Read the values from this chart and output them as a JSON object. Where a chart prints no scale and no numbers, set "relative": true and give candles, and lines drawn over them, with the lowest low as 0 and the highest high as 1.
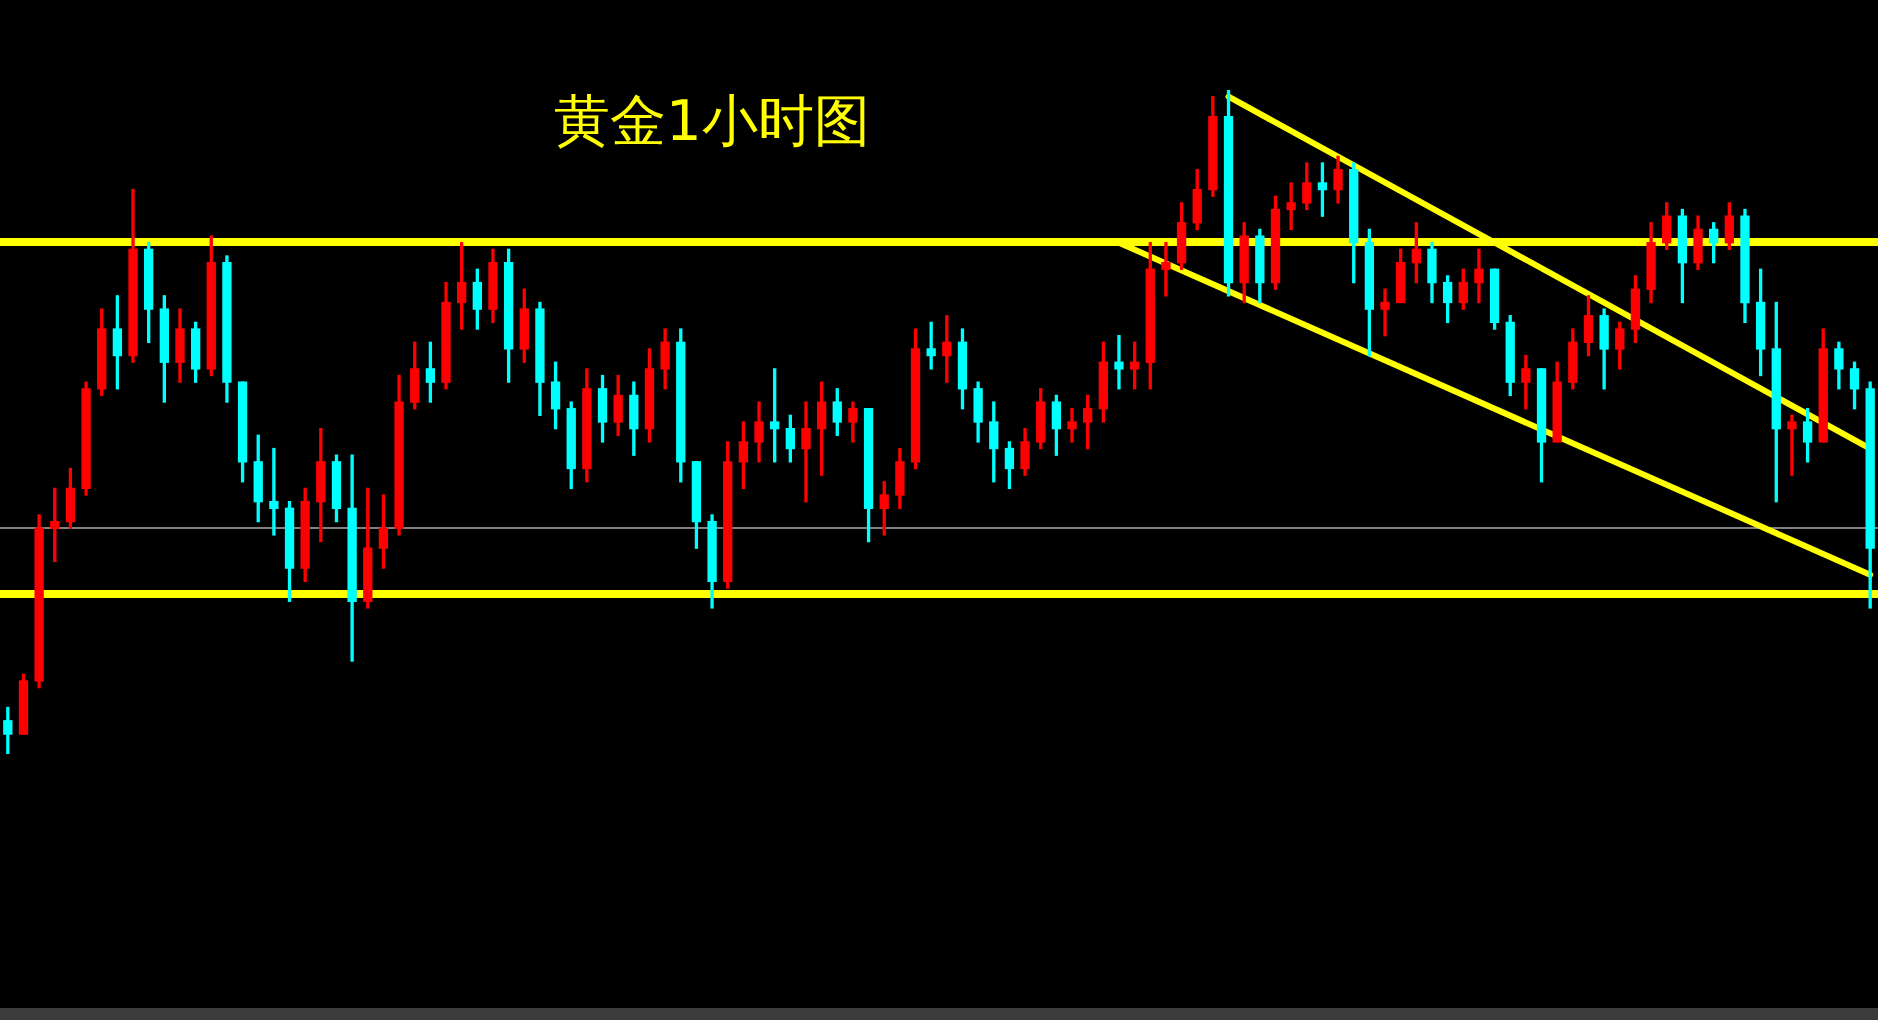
{
  "chart_data": {
    "type": "candlestick",
    "title": "黄金1小时图",
    "relative": true,
    "categories": [
      null,
      null,
      null,
      null,
      null,
      null,
      null,
      null,
      null,
      null,
      null,
      null,
      null,
      null,
      null,
      null,
      null,
      null,
      null,
      null,
      null,
      null,
      null,
      null,
      null,
      null,
      null,
      null,
      null,
      null,
      null,
      null,
      null,
      null,
      null,
      null,
      null,
      null,
      null,
      null,
      null,
      null,
      null,
      null,
      null,
      null,
      null,
      null,
      null,
      null,
      null,
      null,
      null,
      null,
      null,
      null,
      null,
      null,
      null,
      null,
      null,
      null,
      null,
      null,
      null,
      null,
      null,
      null,
      null,
      null,
      null,
      null,
      null,
      null,
      null,
      null,
      null,
      null,
      null,
      null,
      null,
      null,
      null,
      null,
      null,
      null,
      null,
      null,
      null,
      null,
      null,
      null,
      null,
      null,
      null,
      null,
      null,
      null,
      null,
      null,
      null,
      null,
      null,
      null,
      null,
      null,
      null,
      null,
      null,
      null,
      null,
      null,
      null,
      null,
      null,
      null,
      null,
      null,
      null,
      null
    ],
    "ohlc": [
      [
        0.05,
        0.07,
        0,
        0.03
      ],
      [
        0.03,
        0.12,
        0.03,
        0.11
      ],
      [
        0.11,
        0.36,
        0.1,
        0.34
      ],
      [
        0.34,
        0.4,
        0.29,
        0.35
      ],
      [
        0.35,
        0.43,
        0.34,
        0.4
      ],
      [
        0.4,
        0.56,
        0.39,
        0.55
      ],
      [
        0.55,
        0.67,
        0.54,
        0.64
      ],
      [
        0.64,
        0.69,
        0.55,
        0.6
      ],
      [
        0.6,
        0.85,
        0.59,
        0.76
      ],
      [
        0.76,
        0.77,
        0.62,
        0.67
      ],
      [
        0.67,
        0.69,
        0.53,
        0.59
      ],
      [
        0.59,
        0.67,
        0.56,
        0.64
      ],
      [
        0.64,
        0.65,
        0.56,
        0.58
      ],
      [
        0.58,
        0.78,
        0.57,
        0.74
      ],
      [
        0.74,
        0.75,
        0.53,
        0.56
      ],
      [
        0.56,
        0.56,
        0.41,
        0.44
      ],
      [
        0.44,
        0.48,
        0.35,
        0.38
      ],
      [
        0.38,
        0.46,
        0.33,
        0.37
      ],
      [
        0.37,
        0.38,
        0.23,
        0.28
      ],
      [
        0.28,
        0.4,
        0.26,
        0.38
      ],
      [
        0.38,
        0.49,
        0.32,
        0.44
      ],
      [
        0.44,
        0.45,
        0.35,
        0.37
      ],
      [
        0.37,
        0.45,
        0.14,
        0.23
      ],
      [
        0.23,
        0.4,
        0.22,
        0.31
      ],
      [
        0.31,
        0.39,
        0.28,
        0.34
      ],
      [
        0.34,
        0.57,
        0.33,
        0.53
      ],
      [
        0.53,
        0.62,
        0.52,
        0.58
      ],
      [
        0.58,
        0.62,
        0.53,
        0.56
      ],
      [
        0.56,
        0.71,
        0.55,
        0.68
      ],
      [
        0.68,
        0.77,
        0.64,
        0.71
      ],
      [
        0.71,
        0.73,
        0.64,
        0.67
      ],
      [
        0.67,
        0.76,
        0.65,
        0.74
      ],
      [
        0.74,
        0.76,
        0.56,
        0.61
      ],
      [
        0.61,
        0.7,
        0.59,
        0.67
      ],
      [
        0.67,
        0.68,
        0.51,
        0.56
      ],
      [
        0.56,
        0.59,
        0.49,
        0.52
      ],
      [
        0.52,
        0.53,
        0.4,
        0.43
      ],
      [
        0.43,
        0.58,
        0.41,
        0.55
      ],
      [
        0.55,
        0.57,
        0.47,
        0.5
      ],
      [
        0.5,
        0.57,
        0.48,
        0.54
      ],
      [
        0.54,
        0.56,
        0.45,
        0.49
      ],
      [
        0.49,
        0.61,
        0.47,
        0.58
      ],
      [
        0.58,
        0.64,
        0.55,
        0.62
      ],
      [
        0.62,
        0.64,
        0.41,
        0.44
      ],
      [
        0.44,
        0.44,
        0.31,
        0.35
      ],
      [
        0.35,
        0.36,
        0.22,
        0.26
      ],
      [
        0.26,
        0.47,
        0.25,
        0.44
      ],
      [
        0.44,
        0.5,
        0.4,
        0.47
      ],
      [
        0.47,
        0.53,
        0.44,
        0.5
      ],
      [
        0.5,
        0.58,
        0.44,
        0.49
      ],
      [
        0.49,
        0.51,
        0.44,
        0.46
      ],
      [
        0.46,
        0.53,
        0.38,
        0.49
      ],
      [
        0.49,
        0.56,
        0.42,
        0.53
      ],
      [
        0.53,
        0.55,
        0.48,
        0.5
      ],
      [
        0.5,
        0.53,
        0.47,
        0.52
      ],
      [
        0.52,
        0.52,
        0.32,
        0.37
      ],
      [
        0.37,
        0.41,
        0.33,
        0.39
      ],
      [
        0.39,
        0.46,
        0.37,
        0.44
      ],
      [
        0.44,
        0.64,
        0.43,
        0.61
      ],
      [
        0.61,
        0.65,
        0.58,
        0.6
      ],
      [
        0.6,
        0.66,
        0.56,
        0.62
      ],
      [
        0.62,
        0.64,
        0.52,
        0.55
      ],
      [
        0.55,
        0.56,
        0.47,
        0.5
      ],
      [
        0.5,
        0.53,
        0.41,
        0.46
      ],
      [
        0.46,
        0.47,
        0.4,
        0.43
      ],
      [
        0.43,
        0.49,
        0.42,
        0.47
      ],
      [
        0.47,
        0.55,
        0.46,
        0.53
      ],
      [
        0.53,
        0.54,
        0.45,
        0.49
      ],
      [
        0.49,
        0.52,
        0.47,
        0.5
      ],
      [
        0.5,
        0.54,
        0.46,
        0.52
      ],
      [
        0.52,
        0.62,
        0.5,
        0.59
      ],
      [
        0.59,
        0.63,
        0.55,
        0.58
      ],
      [
        0.58,
        0.62,
        0.55,
        0.59
      ],
      [
        0.59,
        0.77,
        0.55,
        0.73
      ],
      [
        0.73,
        0.77,
        0.69,
        0.74
      ],
      [
        0.74,
        0.83,
        0.73,
        0.8
      ],
      [
        0.8,
        0.88,
        0.79,
        0.85
      ],
      [
        0.85,
        0.99,
        0.84,
        0.96
      ],
      [
        0.96,
        1,
        0.69,
        0.71
      ],
      [
        0.71,
        0.8,
        0.68,
        0.78
      ],
      [
        0.78,
        0.79,
        0.68,
        0.71
      ],
      [
        0.71,
        0.84,
        0.7,
        0.82
      ],
      [
        0.82,
        0.86,
        0.79,
        0.83
      ],
      [
        0.83,
        0.89,
        0.82,
        0.86
      ],
      [
        0.86,
        0.89,
        0.81,
        0.85
      ],
      [
        0.85,
        0.9,
        0.83,
        0.88
      ],
      [
        0.88,
        0.89,
        0.71,
        0.77
      ],
      [
        0.77,
        0.79,
        0.6,
        0.67
      ],
      [
        0.67,
        0.7,
        0.63,
        0.68
      ],
      [
        0.68,
        0.76,
        0.68,
        0.74
      ],
      [
        0.74,
        0.8,
        0.71,
        0.76
      ],
      [
        0.76,
        0.77,
        0.68,
        0.71
      ],
      [
        0.71,
        0.72,
        0.65,
        0.68
      ],
      [
        0.68,
        0.73,
        0.67,
        0.71
      ],
      [
        0.71,
        0.76,
        0.68,
        0.73
      ],
      [
        0.73,
        0.73,
        0.64,
        0.65
      ],
      [
        0.65,
        0.66,
        0.54,
        0.56
      ],
      [
        0.56,
        0.6,
        0.52,
        0.58
      ],
      [
        0.58,
        0.58,
        0.41,
        0.47
      ],
      [
        0.47,
        0.59,
        0.47,
        0.56
      ],
      [
        0.56,
        0.64,
        0.55,
        0.62
      ],
      [
        0.62,
        0.69,
        0.6,
        0.66
      ],
      [
        0.66,
        0.67,
        0.55,
        0.61
      ],
      [
        0.61,
        0.65,
        0.58,
        0.64
      ],
      [
        0.64,
        0.72,
        0.62,
        0.7
      ],
      [
        0.7,
        0.8,
        0.68,
        0.77
      ],
      [
        0.77,
        0.83,
        0.76,
        0.81
      ],
      [
        0.81,
        0.82,
        0.68,
        0.74
      ],
      [
        0.74,
        0.81,
        0.73,
        0.79
      ],
      [
        0.79,
        0.8,
        0.74,
        0.77
      ],
      [
        0.77,
        0.83,
        0.76,
        0.81
      ],
      [
        0.81,
        0.82,
        0.65,
        0.68
      ],
      [
        0.68,
        0.73,
        0.57,
        0.61
      ],
      [
        0.61,
        0.68,
        0.38,
        0.49
      ],
      [
        0.49,
        0.51,
        0.42,
        0.5
      ],
      [
        0.5,
        0.52,
        0.44,
        0.47
      ],
      [
        0.47,
        0.64,
        0.47,
        0.61
      ],
      [
        0.61,
        0.62,
        0.55,
        0.58
      ],
      [
        0.58,
        0.59,
        0.52,
        0.55
      ],
      [
        0.55,
        0.56,
        0.22,
        0.31
      ]
    ],
    "colors": [
      "#00ffff",
      "#ff0000",
      "#ff0000",
      "#ff0000",
      "#ff0000",
      "#ff0000",
      "#ff0000",
      "#00ffff",
      "#ff0000",
      "#00ffff",
      "#00ffff",
      "#ff0000",
      "#00ffff",
      "#ff0000",
      "#00ffff",
      "#00ffff",
      "#00ffff",
      "#00ffff",
      "#00ffff",
      "#ff0000",
      "#ff0000",
      "#00ffff",
      "#00ffff",
      "#ff0000",
      "#ff0000",
      "#ff0000",
      "#ff0000",
      "#00ffff",
      "#ff0000",
      "#ff0000",
      "#00ffff",
      "#ff0000",
      "#00ffff",
      "#ff0000",
      "#00ffff",
      "#00ffff",
      "#00ffff",
      "#ff0000",
      "#00ffff",
      "#ff0000",
      "#00ffff",
      "#ff0000",
      "#ff0000",
      "#00ffff",
      "#00ffff",
      "#00ffff",
      "#ff0000",
      "#ff0000",
      "#ff0000",
      "#00ffff",
      "#00ffff",
      "#ff0000",
      "#ff0000",
      "#00ffff",
      "#ff0000",
      "#00ffff",
      "#ff0000",
      "#ff0000",
      "#ff0000",
      "#00ffff",
      "#ff0000",
      "#00ffff",
      "#00ffff",
      "#00ffff",
      "#00ffff",
      "#ff0000",
      "#ff0000",
      "#00ffff",
      "#ff0000",
      "#ff0000",
      "#ff0000",
      "#00ffff",
      "#ff0000",
      "#ff0000",
      "#ff0000",
      "#ff0000",
      "#ff0000",
      "#ff0000",
      "#00ffff",
      "#ff0000",
      "#00ffff",
      "#ff0000",
      "#ff0000",
      "#ff0000",
      "#00ffff",
      "#ff0000",
      "#00ffff",
      "#00ffff",
      "#ff0000",
      "#ff0000",
      "#ff0000",
      "#00ffff",
      "#00ffff",
      "#ff0000",
      "#ff0000",
      "#00ffff",
      "#00ffff",
      "#ff0000",
      "#00ffff",
      "#ff0000",
      "#ff0000",
      "#ff0000",
      "#00ffff",
      "#ff0000",
      "#ff0000",
      "#ff0000",
      "#ff0000",
      "#00ffff",
      "#ff0000",
      "#00ffff",
      "#ff0000",
      "#00ffff",
      "#00ffff",
      "#00ffff",
      "#ff0000",
      "#00ffff",
      "#ff0000",
      "#00ffff",
      "#00ffff",
      "#00ffff"
    ],
    "series": [
      {
        "type": "line",
        "color": "#ffff00",
        "values": [
          null,
          null,
          null,
          null,
          null,
          null,
          null,
          null,
          null,
          null,
          null,
          null,
          null,
          null,
          null,
          null,
          null,
          null,
          null,
          null,
          null,
          null,
          null,
          null,
          null,
          null,
          null,
          null,
          null,
          null,
          null,
          null,
          null,
          null,
          null,
          null,
          null,
          null,
          null,
          null,
          null,
          null,
          null,
          null,
          null,
          null,
          null,
          null,
          null,
          null,
          null,
          null,
          null,
          null,
          null,
          null,
          null,
          null,
          null,
          null,
          null,
          null,
          null,
          null,
          null,
          null,
          null,
          null,
          null,
          null,
          null,
          null,
          null,
          null,
          null,
          null,
          null,
          null,
          0.99,
          null,
          null,
          null,
          null,
          null,
          null,
          null,
          null,
          null,
          null,
          null,
          null,
          null,
          null,
          null,
          null,
          null,
          null,
          null,
          null,
          null,
          null,
          null,
          null,
          null,
          null,
          null,
          null,
          null,
          null,
          null,
          null,
          null,
          null,
          null,
          null,
          null,
          null,
          null,
          null,
          0.46
        ]
      },
      {
        "type": "line",
        "color": "#ffff00",
        "values": [
          null,
          null,
          null,
          null,
          null,
          null,
          null,
          null,
          null,
          null,
          null,
          null,
          null,
          null,
          null,
          null,
          null,
          null,
          null,
          null,
          null,
          null,
          null,
          null,
          null,
          null,
          null,
          null,
          null,
          null,
          null,
          null,
          null,
          null,
          null,
          null,
          null,
          null,
          null,
          null,
          null,
          null,
          null,
          null,
          null,
          null,
          null,
          null,
          null,
          null,
          null,
          null,
          null,
          null,
          null,
          null,
          null,
          null,
          null,
          null,
          null,
          null,
          null,
          null,
          null,
          null,
          null,
          null,
          null,
          null,
          null,
          0.77,
          null,
          null,
          null,
          null,
          null,
          null,
          null,
          null,
          null,
          null,
          null,
          null,
          null,
          null,
          null,
          null,
          null,
          null,
          null,
          null,
          null,
          null,
          null,
          null,
          null,
          null,
          null,
          null,
          null,
          null,
          null,
          null,
          null,
          null,
          null,
          null,
          null,
          null,
          null,
          null,
          null,
          null,
          null,
          null,
          null,
          null,
          null,
          0.27
        ]
      }
    ],
    "ref_lines": [
      {
        "axis": "y",
        "value": 0.77,
        "color": "#ffff00"
      },
      {
        "axis": "y",
        "value": 0.24,
        "color": "#ffff00"
      },
      {
        "axis": "y",
        "value": 0.34,
        "color": "#808080"
      }
    ]
  }
}
